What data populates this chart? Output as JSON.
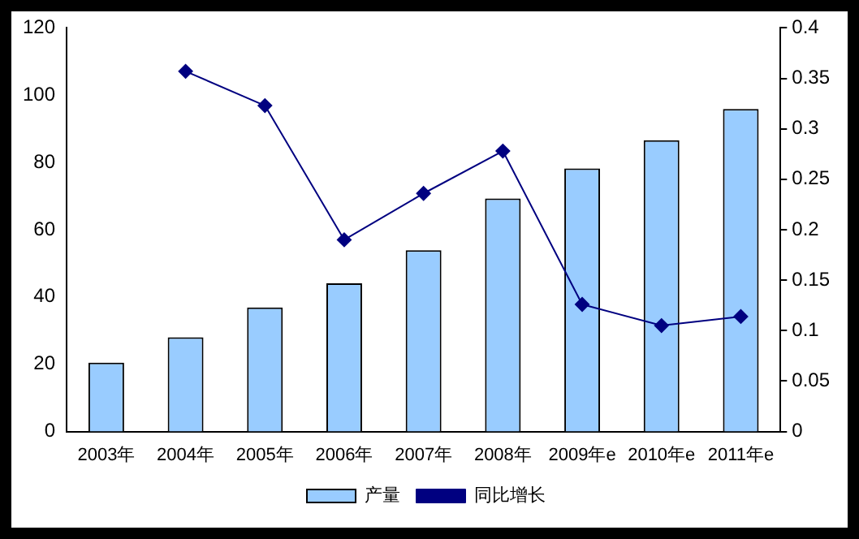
{
  "chart_data": {
    "type": "bar",
    "categories": [
      "2003年",
      "2004年",
      "2005年",
      "2006年",
      "2007年",
      "2008年",
      "2009年e",
      "2010年e",
      "2011年e"
    ],
    "series": [
      {
        "name": "产量",
        "color": "#99ccff",
        "values": [
          20.5,
          28.0,
          36.9,
          44.1,
          53.9,
          69.3,
          78.2,
          86.6,
          95.9
        ]
      },
      {
        "name": "同比增长",
        "type": "line",
        "axis": "y2",
        "color": "#000080",
        "values": [
          null,
          0.357,
          0.323,
          0.19,
          0.236,
          0.278,
          0.126,
          0.105,
          0.114
        ]
      }
    ],
    "ylim": [
      0,
      120
    ],
    "yticks": [
      0,
      20,
      40,
      60,
      80,
      100,
      120
    ],
    "y2lim": [
      0,
      0.4
    ],
    "y2ticks": [
      0,
      0.05,
      0.1,
      0.15,
      0.2,
      0.25,
      0.3,
      0.35,
      0.4
    ],
    "grid": false,
    "legend": "bottom",
    "marker": "diamond",
    "line_style": "solid"
  }
}
